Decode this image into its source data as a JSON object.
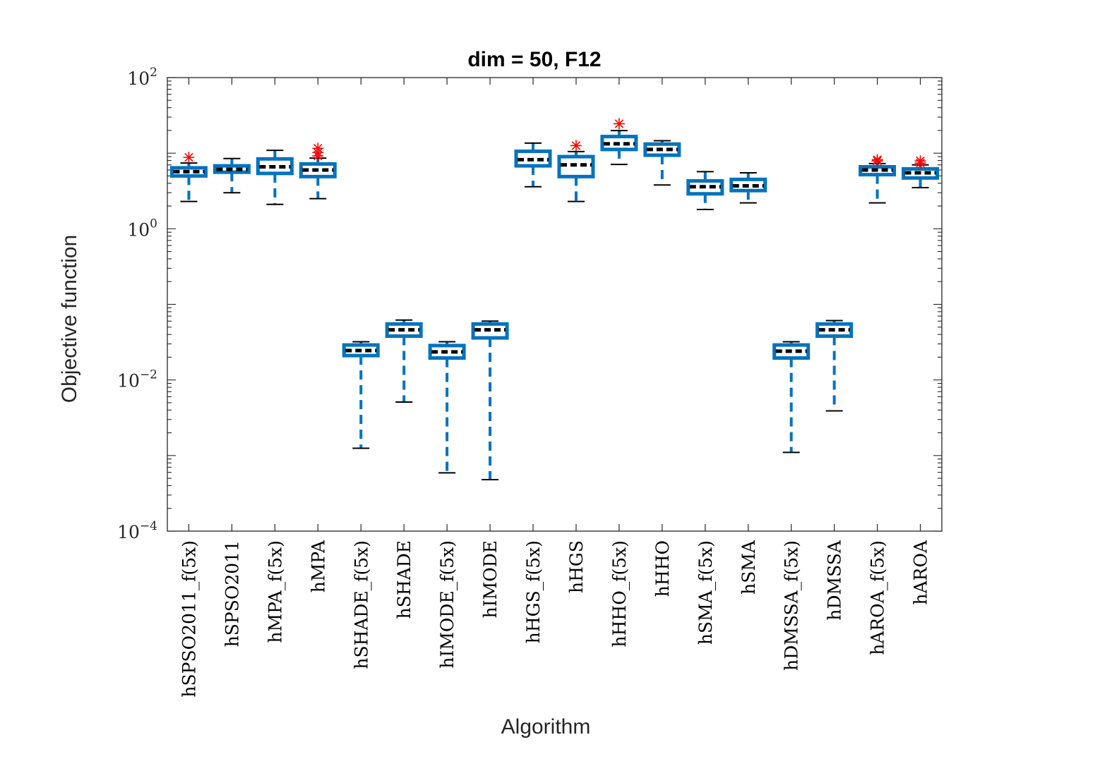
{
  "chart_data": {
    "type": "boxplot",
    "title": "dim = 50,  F12",
    "xlabel": "Algorithm",
    "ylabel": "Objective function",
    "yscale": "log",
    "ylim": [
      0.0001,
      100
    ],
    "yticks": [
      {
        "value": 0.0001,
        "base": "10",
        "exp": "−4"
      },
      {
        "value": 0.01,
        "base": "10",
        "exp": "−2"
      },
      {
        "value": 1,
        "base": "10",
        "exp": "0"
      },
      {
        "value": 100,
        "base": "10",
        "exp": "2"
      }
    ],
    "colors": {
      "box": "#0072BD",
      "median": "#000000",
      "outlier": "#FF0000",
      "axis": "#262626"
    },
    "categories": [
      "hSPSO2011_f(5x)",
      "hSPSO2011",
      "hMPA_f(5x)",
      "hMPA",
      "hSHADE_f(5x)",
      "hSHADE",
      "hIMODE_f(5x)",
      "hIMODE",
      "hHGS_f(5x)",
      "hHGS",
      "hHHO_f(5x)",
      "hHHO",
      "hSMA_f(5x)",
      "hSMA",
      "hDMSSA_f(5x)",
      "hDMSSA",
      "hAROA_f(5x)",
      "hAROA"
    ],
    "boxes": [
      {
        "whisker_low": 2.3,
        "q1": 5.0,
        "median": 5.7,
        "q3": 6.4,
        "whisker_high": 7.4,
        "outliers": [
          8.8
        ]
      },
      {
        "whisker_low": 3.0,
        "q1": 5.6,
        "median": 6.1,
        "q3": 6.8,
        "whisker_high": 8.5,
        "outliers": []
      },
      {
        "whisker_low": 2.1,
        "q1": 5.4,
        "median": 6.6,
        "q3": 8.4,
        "whisker_high": 10.9,
        "outliers": []
      },
      {
        "whisker_low": 2.5,
        "q1": 4.9,
        "median": 6.0,
        "q3": 7.2,
        "whisker_high": 8.6,
        "outliers": [
          9.2,
          10.2,
          11.6
        ]
      },
      {
        "whisker_low": 0.00125,
        "q1": 0.021,
        "median": 0.0245,
        "q3": 0.029,
        "whisker_high": 0.032,
        "outliers": []
      },
      {
        "whisker_low": 0.0051,
        "q1": 0.038,
        "median": 0.046,
        "q3": 0.055,
        "whisker_high": 0.062,
        "outliers": []
      },
      {
        "whisker_low": 0.00059,
        "q1": 0.0195,
        "median": 0.0235,
        "q3": 0.0285,
        "whisker_high": 0.032,
        "outliers": []
      },
      {
        "whisker_low": 0.00048,
        "q1": 0.036,
        "median": 0.046,
        "q3": 0.055,
        "whisker_high": 0.06,
        "outliers": []
      },
      {
        "whisker_low": 3.6,
        "q1": 6.8,
        "median": 8.2,
        "q3": 10.6,
        "whisker_high": 13.6,
        "outliers": []
      },
      {
        "whisker_low": 2.3,
        "q1": 4.9,
        "median": 7.0,
        "q3": 9.0,
        "whisker_high": 10.5,
        "outliers": [
          12.6
        ]
      },
      {
        "whisker_low": 7.1,
        "q1": 11.2,
        "median": 13.3,
        "q3": 16.6,
        "whisker_high": 19.9,
        "outliers": [
          24.5
        ]
      },
      {
        "whisker_low": 3.8,
        "q1": 9.4,
        "median": 11.2,
        "q3": 13.2,
        "whisker_high": 14.6,
        "outliers": []
      },
      {
        "whisker_low": 1.8,
        "q1": 2.9,
        "median": 3.6,
        "q3": 4.3,
        "whisker_high": 5.7,
        "outliers": []
      },
      {
        "whisker_low": 2.2,
        "q1": 3.2,
        "median": 3.7,
        "q3": 4.5,
        "whisker_high": 5.5,
        "outliers": []
      },
      {
        "whisker_low": 0.0011,
        "q1": 0.0195,
        "median": 0.024,
        "q3": 0.029,
        "whisker_high": 0.032,
        "outliers": []
      },
      {
        "whisker_low": 0.0039,
        "q1": 0.038,
        "median": 0.046,
        "q3": 0.055,
        "whisker_high": 0.061,
        "outliers": []
      },
      {
        "whisker_low": 2.2,
        "q1": 5.2,
        "median": 6.0,
        "q3": 6.6,
        "whisker_high": 7.3,
        "outliers": [
          7.9,
          8.2
        ]
      },
      {
        "whisker_low": 3.5,
        "q1": 4.7,
        "median": 5.5,
        "q3": 6.2,
        "whisker_high": 7.0,
        "outliers": [
          7.4,
          7.9
        ]
      }
    ]
  }
}
